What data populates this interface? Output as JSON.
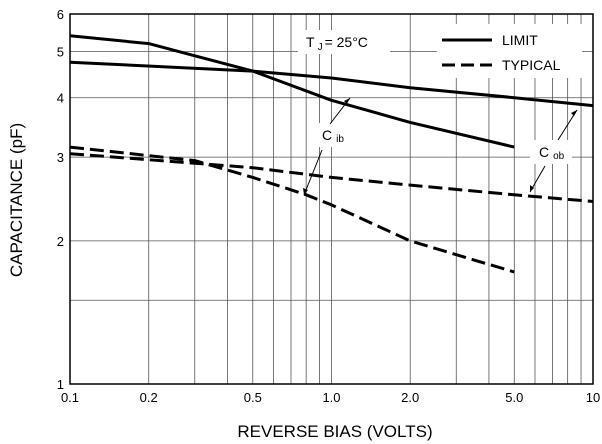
{
  "chart_data": {
    "type": "line",
    "xlabel": "REVERSE BIAS (VOLTS)",
    "ylabel": "CAPACITANCE (pF)",
    "xscale": "log",
    "yscale": "log",
    "xlim": [
      0.1,
      10
    ],
    "ylim": [
      1,
      6
    ],
    "xticks": [
      {
        "value": 0.1,
        "label": "0.1"
      },
      {
        "value": 0.2,
        "label": "0.2"
      },
      {
        "value": 0.5,
        "label": "0.5"
      },
      {
        "value": 1,
        "label": "1.0"
      },
      {
        "value": 2,
        "label": "2.0"
      },
      {
        "value": 5,
        "label": "5.0"
      },
      {
        "value": 10,
        "label": "10"
      }
    ],
    "yticks": [
      {
        "value": 1,
        "label": "1"
      },
      {
        "value": 2,
        "label": "2"
      },
      {
        "value": 3,
        "label": "3"
      },
      {
        "value": 4,
        "label": "4"
      },
      {
        "value": 5,
        "label": "5"
      },
      {
        "value": 6,
        "label": "6"
      }
    ],
    "grid": true,
    "legend": {
      "position": "top-right",
      "entries": [
        {
          "label": "LIMIT",
          "style": "solid"
        },
        {
          "label": "TYPICAL",
          "style": "dashed"
        }
      ]
    },
    "annotations": {
      "temperature": {
        "main": "T",
        "sub": "J",
        "rest": "= 25°C"
      },
      "cib": {
        "main": "C",
        "sub": "ib"
      },
      "cob": {
        "main": "C",
        "sub": "ob"
      }
    },
    "series": [
      {
        "style": "solid",
        "x": [
          0.1,
          0.2,
          0.3,
          0.5,
          1.0,
          2.0,
          5.0
        ],
        "y": [
          5.4,
          5.2,
          4.9,
          4.55,
          3.95,
          3.55,
          3.15
        ]
      },
      {
        "style": "solid",
        "x": [
          0.1,
          0.5,
          1.0,
          2.0,
          5.0,
          10
        ],
        "y": [
          4.75,
          4.55,
          4.4,
          4.2,
          4.0,
          3.85
        ]
      },
      {
        "style": "dashed",
        "x": [
          0.1,
          0.3,
          0.5,
          0.8,
          1.0,
          2.0,
          5.0
        ],
        "y": [
          3.15,
          2.95,
          2.72,
          2.5,
          2.38,
          2.0,
          1.72
        ]
      },
      {
        "style": "dashed",
        "x": [
          0.1,
          0.5,
          1.0,
          2.0,
          5.0,
          10
        ],
        "y": [
          3.05,
          2.85,
          2.72,
          2.62,
          2.5,
          2.42
        ]
      }
    ]
  }
}
